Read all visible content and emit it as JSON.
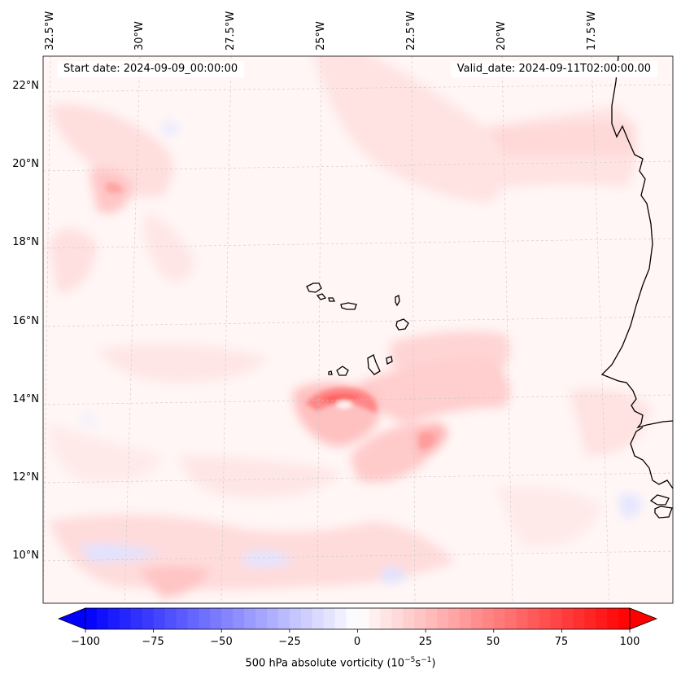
{
  "map": {
    "start_date_label": "Start date: 2024-09-09_00:00:00",
    "valid_date_label": "Valid_date: 2024-09-11T02:00:00.00",
    "longitude_labels": [
      "32.5°W",
      "30°W",
      "27.5°W",
      "25°W",
      "22.5°W",
      "20°W",
      "17.5°W"
    ],
    "latitude_labels": [
      "22°N",
      "20°N",
      "18°N",
      "16°N",
      "14°N",
      "12°N",
      "10°N"
    ],
    "islands": "Cabo Verde",
    "coast": "West Africa"
  },
  "colorbar": {
    "ticks": [
      "−100",
      "−75",
      "−50",
      "−25",
      "0",
      "25",
      "50",
      "75",
      "100"
    ],
    "tick_values": [
      -100,
      -75,
      -50,
      -25,
      0,
      25,
      50,
      75,
      100
    ],
    "label_main": "500 hPa absolute vorticity (10",
    "label_exp1": "−5",
    "label_mid": "s",
    "label_exp2": "−1",
    "label_end": ")",
    "min": -100,
    "max": 100,
    "negative_color": "#0000ff",
    "positive_color": "#ff0000",
    "neutral_color": "#ffffff"
  }
}
